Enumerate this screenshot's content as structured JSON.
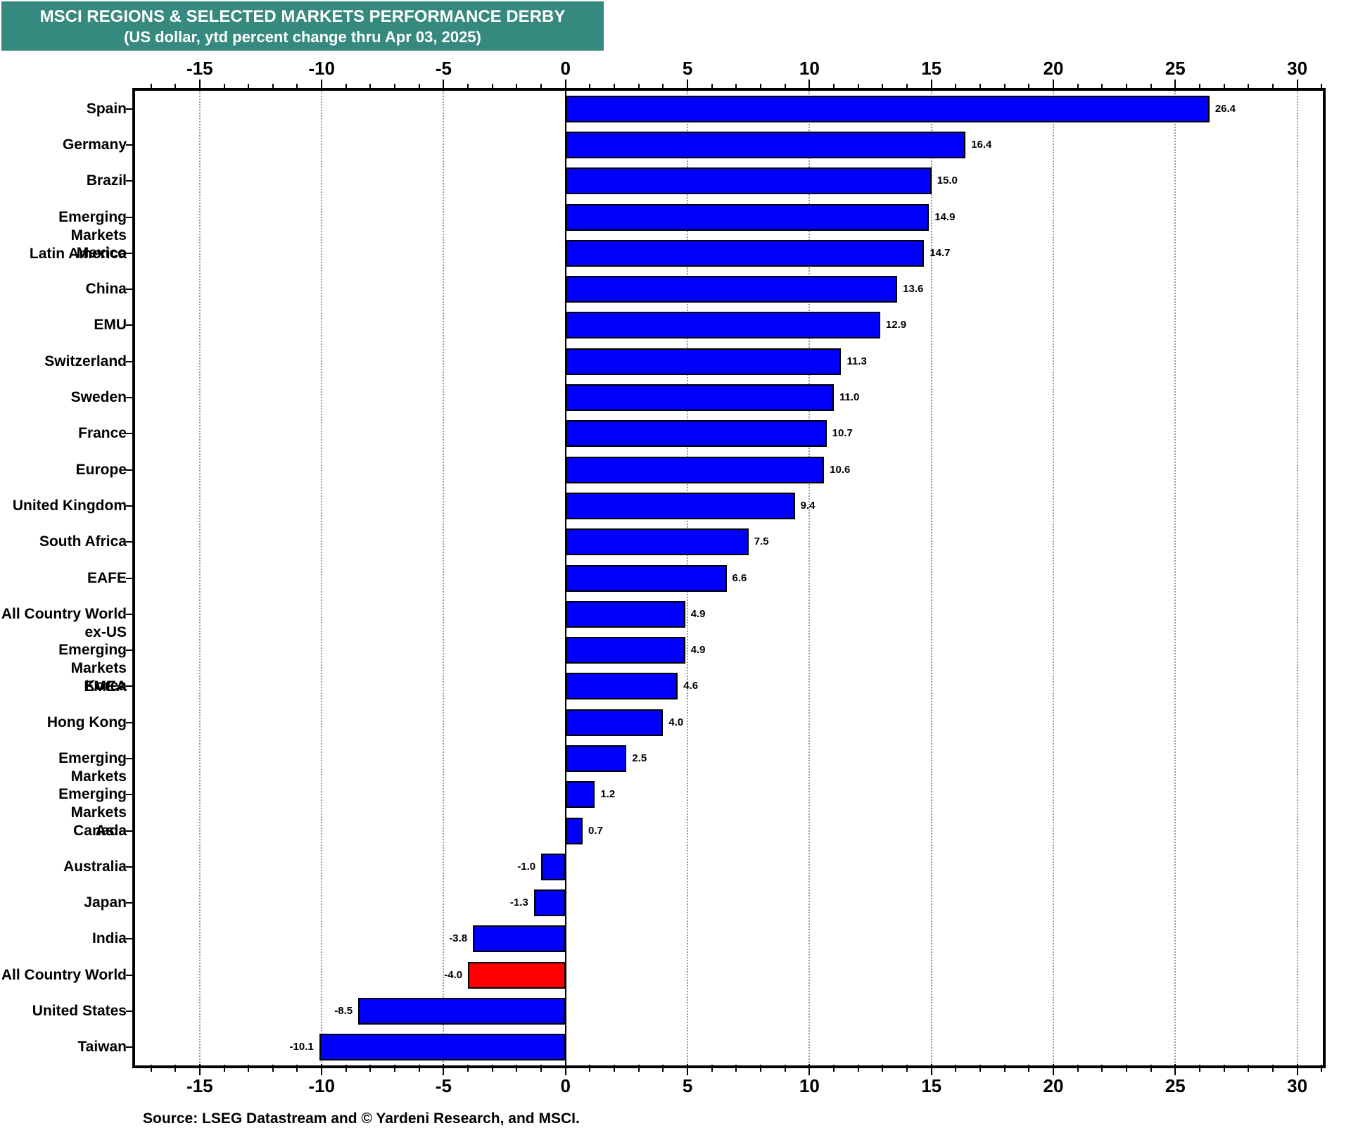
{
  "title": {
    "line1": "MSCI REGIONS & SELECTED MARKETS PERFORMANCE DERBY",
    "line2": "(US dollar, ytd percent change thru Apr 03, 2025)"
  },
  "source": "Source: LSEG Datastream and © Yardeni Research, and MSCI.",
  "colors": {
    "title_bg": "#36897E",
    "title_text": "#FFFFFF",
    "bar_blue": "#0000FA",
    "bar_red": "#FA0000",
    "bar_stroke": "#000000",
    "grid": "#9A9A9A",
    "axis": "#000000",
    "background": "#FFFFFF"
  },
  "chart_data": {
    "type": "bar",
    "orientation": "horizontal",
    "title": "MSCI REGIONS & SELECTED MARKETS PERFORMANCE DERBY",
    "subtitle": "(US dollar, ytd percent change thru Apr 03, 2025)",
    "xlabel": "ytd percent change (US dollar)",
    "categories": [
      "Spain",
      "Germany",
      "Brazil",
      "Emerging Markets\nLatin America",
      "Mexico",
      "China",
      "EMU",
      "Switzerland",
      "Sweden",
      "France",
      "Europe",
      "United Kingdom",
      "South Africa",
      "EAFE",
      "All Country World\nex-US",
      "Emerging Markets\nEMEA",
      "Korea",
      "Hong Kong",
      "Emerging Markets",
      "Emerging Markets\nAsia",
      "Canada",
      "Australia",
      "Japan",
      "India",
      "All Country World",
      "United States",
      "Taiwan"
    ],
    "values": [
      26.4,
      16.4,
      15.0,
      14.9,
      14.7,
      13.6,
      12.9,
      11.3,
      11.0,
      10.7,
      10.6,
      9.4,
      7.5,
      6.6,
      4.9,
      4.9,
      4.6,
      4.0,
      2.5,
      1.2,
      0.7,
      -1.0,
      -1.3,
      -3.8,
      -4.0,
      -8.5,
      -10.1
    ],
    "highlight_index": 24,
    "highlight_category": "All Country World",
    "xlim": [
      -17.65,
      31.05
    ],
    "xticks_major": [
      -15,
      -10,
      -5,
      0,
      5,
      10,
      15,
      20,
      25,
      30
    ],
    "minor_tick_step": 1,
    "grid": "dotted vertical gridlines at major ticks, solid black line at zero",
    "legend": "none",
    "value_labels": "one decimal at bar end, left of bar for negatives"
  }
}
